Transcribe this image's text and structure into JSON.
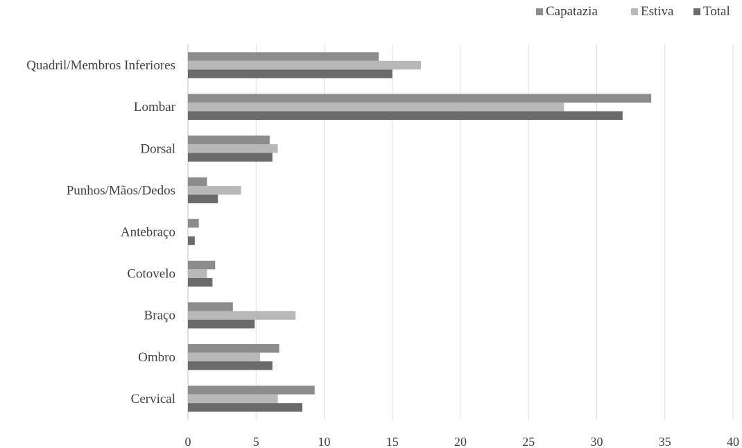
{
  "chart_data": {
    "type": "bar",
    "orientation": "horizontal",
    "categories": [
      "Cervical",
      "Ombro",
      "Braço",
      "Cotovelo",
      "Antebraço",
      "Punhos/Mãos/Dedos",
      "Dorsal",
      "Lombar",
      "Quadril/Membros Inferiores"
    ],
    "series": [
      {
        "name": "Capatazia",
        "color": "#8c8c8c",
        "values": [
          9.3,
          6.7,
          3.3,
          2.0,
          0.8,
          1.4,
          6.0,
          34.0,
          14.0
        ]
      },
      {
        "name": "Estiva",
        "color": "#b8b8b8",
        "values": [
          6.6,
          5.3,
          7.9,
          1.4,
          0.0,
          3.9,
          6.6,
          27.6,
          17.1
        ]
      },
      {
        "name": "Total",
        "color": "#6b6b6b",
        "values": [
          8.4,
          6.2,
          4.9,
          1.8,
          0.5,
          2.2,
          6.2,
          31.9,
          15.0
        ]
      }
    ],
    "xlim": [
      0,
      40
    ],
    "xticks": [
      0,
      5,
      10,
      15,
      20,
      25,
      30,
      35,
      40
    ],
    "grid": "vertical",
    "legend": "top-right",
    "title": "",
    "xlabel": "",
    "ylabel": ""
  }
}
